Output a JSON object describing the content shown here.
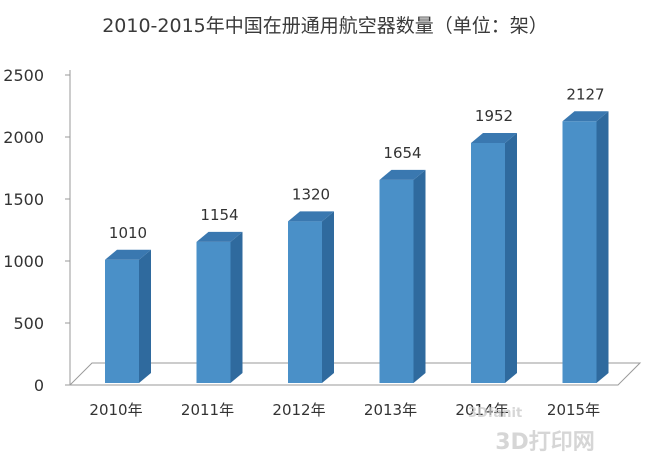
{
  "chart_data": {
    "type": "bar",
    "title": "2010-2015年中国在册通用航空器数量（单位：架）",
    "xlabel": "",
    "ylabel": "",
    "categories": [
      "2010年",
      "2011年",
      "2012年",
      "2013年",
      "2014年",
      "2015年"
    ],
    "values": [
      1010,
      1154,
      1320,
      1654,
      1952,
      2127
    ],
    "ylim": [
      0,
      2500
    ],
    "yticks": [
      "0",
      "500",
      "1000",
      "1500",
      "2000",
      "2500"
    ],
    "grid": false,
    "legend": "none",
    "style": "3d-column",
    "colors": {
      "bar_front": "#4a90c8",
      "bar_side": "#2f6a9e",
      "bar_top": "#3a78b0",
      "floor": "#ffffff",
      "axis": "#9a9a9a"
    }
  },
  "watermark": {
    "text": "3D打印网",
    "small_text": "3Dfanit"
  }
}
